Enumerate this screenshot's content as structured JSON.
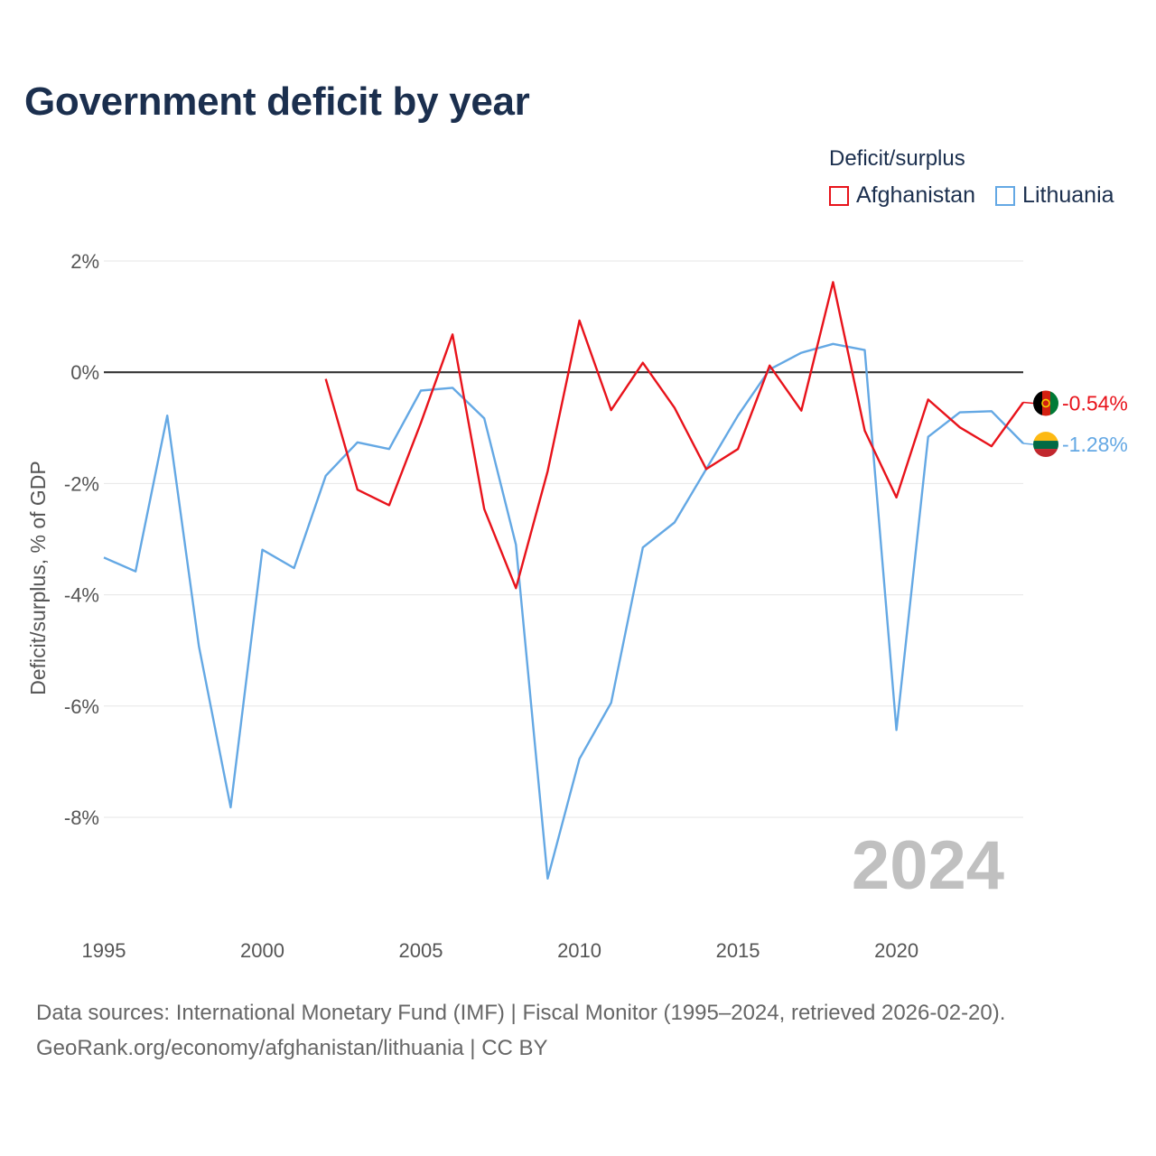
{
  "colors": {
    "afghanistan": "#e8131b",
    "lithuania": "#64a8e4",
    "zero_line": "#333333",
    "grid": "#e6e6e6",
    "title": "#1b2f4e"
  },
  "legend": {
    "title": "Deficit/surplus",
    "items": [
      {
        "label": "Afghanistan",
        "color": "#e8131b"
      },
      {
        "label": "Lithuania",
        "color": "#64a8e4"
      }
    ]
  },
  "footer": {
    "source": "Data sources: International Monetary Fund (IMF) | Fiscal Monitor (1995–2024, retrieved 2026-02-20).",
    "credit": "GeoRank.org/economy/afghanistan/lithuania | CC BY"
  },
  "chart_data": {
    "type": "line",
    "title": "Government deficit by year",
    "xlabel": "",
    "ylabel": "Deficit/surplus, % of GDP",
    "xlim": [
      1995,
      2024
    ],
    "ylim": [
      -10,
      2
    ],
    "x_ticks": [
      1995,
      2000,
      2005,
      2010,
      2015,
      2020
    ],
    "y_ticks": [
      2,
      0,
      -2,
      -4,
      -6,
      -8
    ],
    "y_tick_labels": [
      "2%",
      "0%",
      "-2%",
      "-4%",
      "-6%",
      "-8%"
    ],
    "grid": true,
    "legend_position": "top-right",
    "watermark_year": "2024",
    "series": [
      {
        "name": "Lithuania",
        "color": "#64a8e4",
        "end_label": "-1.28%",
        "x": [
          1995,
          1996,
          1997,
          1998,
          1999,
          2000,
          2001,
          2002,
          2003,
          2004,
          2005,
          2006,
          2007,
          2008,
          2009,
          2010,
          2011,
          2012,
          2013,
          2014,
          2015,
          2016,
          2017,
          2018,
          2019,
          2020,
          2021,
          2022,
          2023,
          2024
        ],
        "values": [
          -3.33,
          -3.58,
          -0.78,
          -4.93,
          -7.82,
          -3.19,
          -3.52,
          -1.86,
          -1.26,
          -1.38,
          -0.33,
          -0.28,
          -0.83,
          -3.1,
          -9.1,
          -6.95,
          -5.94,
          -3.15,
          -2.7,
          -1.74,
          -0.78,
          0.05,
          0.35,
          0.51,
          0.4,
          -6.43,
          -1.16,
          -0.72,
          -0.7,
          -1.28
        ]
      },
      {
        "name": "Afghanistan",
        "color": "#e8131b",
        "end_label": "-0.54%",
        "x": [
          2002,
          2003,
          2004,
          2005,
          2006,
          2007,
          2008,
          2009,
          2010,
          2011,
          2012,
          2013,
          2014,
          2015,
          2016,
          2017,
          2018,
          2019,
          2020,
          2021,
          2022,
          2023,
          2024
        ],
        "values": [
          -0.12,
          -2.11,
          -2.39,
          -0.91,
          0.68,
          -2.46,
          -3.88,
          -1.78,
          0.93,
          -0.68,
          0.17,
          -0.64,
          -1.74,
          -1.38,
          0.12,
          -0.69,
          1.62,
          -1.05,
          -2.25,
          -0.49,
          -0.99,
          -1.33,
          -0.54
        ]
      }
    ]
  }
}
